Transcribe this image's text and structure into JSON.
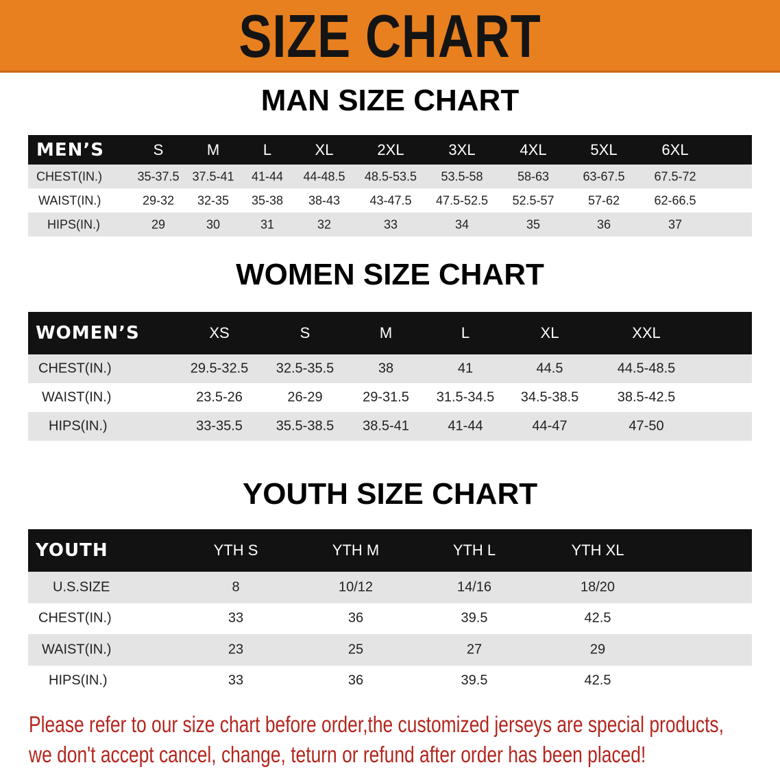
{
  "banner_title": "SIZE CHART",
  "men": {
    "title": "MAN SIZE CHART",
    "header_label": "MEN’S",
    "sizes": [
      "S",
      "M",
      "L",
      "XL",
      "2XL",
      "3XL",
      "4XL",
      "5XL",
      "6XL"
    ],
    "rows": [
      {
        "label": "CHEST(IN.)",
        "values": [
          "35-37.5",
          "37.5-41",
          "41-44",
          "44-48.5",
          "48.5-53.5",
          "53.5-58",
          "58-63",
          "63-67.5",
          "67.5-72"
        ]
      },
      {
        "label": "WAIST(IN.)",
        "values": [
          "29-32",
          "32-35",
          "35-38",
          "38-43",
          "43-47.5",
          "47.5-52.5",
          "52.5-57",
          "57-62",
          "62-66.5"
        ]
      },
      {
        "label": "HIPS(IN.)",
        "values": [
          "29",
          "30",
          "31",
          "32",
          "33",
          "34",
          "35",
          "36",
          "37"
        ]
      }
    ]
  },
  "women": {
    "title": "WOMEN SIZE CHART",
    "header_label": "WOMEN’S",
    "sizes": [
      "XS",
      "S",
      "M",
      "L",
      "XL",
      "XXL"
    ],
    "rows": [
      {
        "label": "CHEST(IN.)",
        "values": [
          "29.5-32.5",
          "32.5-35.5",
          "38",
          "41",
          "44.5",
          "44.5-48.5"
        ]
      },
      {
        "label": "WAIST(IN.)",
        "values": [
          "23.5-26",
          "26-29",
          "29-31.5",
          "31.5-34.5",
          "34.5-38.5",
          "38.5-42.5"
        ]
      },
      {
        "label": "HIPS(IN.)",
        "values": [
          "33-35.5",
          "35.5-38.5",
          "38.5-41",
          "41-44",
          "44-47",
          "47-50"
        ]
      }
    ]
  },
  "youth": {
    "title": "YOUTH SIZE CHART",
    "header_label": "YOUTH",
    "sizes": [
      "YTH S",
      "YTH M",
      "YTH L",
      "YTH XL"
    ],
    "rows": [
      {
        "label": "U.S.SIZE",
        "values": [
          "8",
          "10/12",
          "14/16",
          "18/20"
        ]
      },
      {
        "label": "CHEST(IN.)",
        "values": [
          "33",
          "36",
          "39.5",
          "42.5"
        ]
      },
      {
        "label": "WAIST(IN.)",
        "values": [
          "23",
          "25",
          "27",
          "29"
        ]
      },
      {
        "label": "HIPS(IN.)",
        "values": [
          "33",
          "36",
          "39.5",
          "42.5"
        ]
      }
    ]
  },
  "notice": {
    "line1": "Please refer to our size chart before order,the customized jerseys are special products,",
    "line2": "we don't accept cancel, change, teturn or refund after order has been placed!"
  },
  "colors": {
    "banner": "#e8801f",
    "header_row": "#121212",
    "stripe": "#e4e4e4",
    "notice": "#b3261e"
  }
}
